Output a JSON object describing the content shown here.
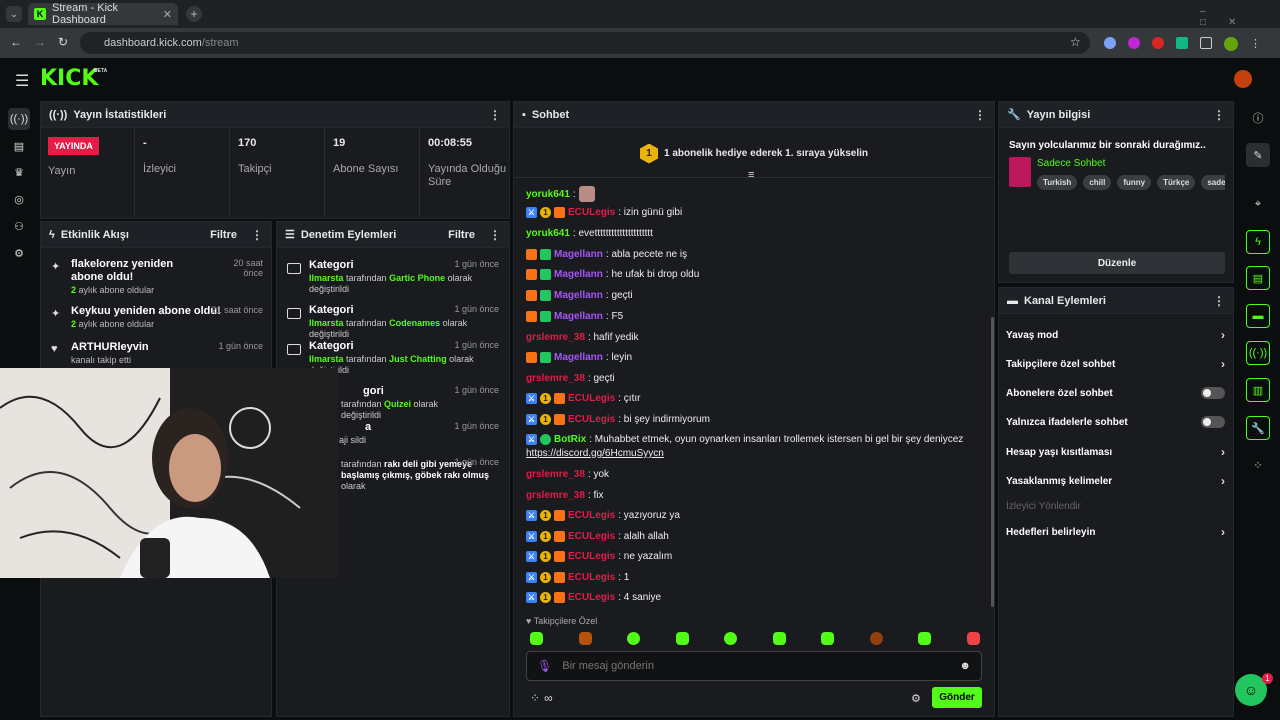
{
  "browser": {
    "tab_title": "Stream - Kick Dashboard",
    "favicon_letter": "K",
    "url_host": "dashboard.kick.com",
    "url_path": "/stream"
  },
  "app": {
    "logo": "KICK",
    "beta": "BETA"
  },
  "stats": {
    "title": "Yayın İstatistikleri",
    "live_badge": "YAYINDA",
    "status_label": "Yayın",
    "items": [
      {
        "value": "-",
        "label": "İzleyici"
      },
      {
        "value": "170",
        "label": "Takipçi"
      },
      {
        "value": "19",
        "label": "Abone Sayısı"
      },
      {
        "value": "00:08:55",
        "label": "Yayında Olduğu Süre"
      }
    ]
  },
  "activity": {
    "title": "Etkinlik Akışı",
    "filter": "Filtre",
    "items": [
      {
        "title": "flakelorenz yeniden abone oldu!",
        "sub_count": "2",
        "sub_text": " aylık abone oldular",
        "time": "20 saat önce"
      },
      {
        "title": "Keykuu yeniden abone oldu!",
        "sub_count": "2",
        "sub_text": " aylık abone oldular",
        "time": "21 saat önce"
      },
      {
        "title": "ARTHURleyvin",
        "sub_count": "",
        "sub_text": "kanalı takip etti",
        "time": "1 gün önce"
      }
    ]
  },
  "moderation": {
    "title": "Denetim Eylemleri",
    "filter": "Filtre",
    "items": [
      {
        "title": "Kategori",
        "user": "Ilmarsta",
        "mid": " tarafından ",
        "value": "Gartic Phone",
        "end": " olarak değiştirildi",
        "time": "1 gün önce"
      },
      {
        "title": "Kategori",
        "user": "Ilmarsta",
        "mid": " tarafından ",
        "value": "Codenames",
        "end": " olarak değiştirildi",
        "time": "1 gün önce"
      },
      {
        "title": "Kategori",
        "user": "Ilmarsta",
        "mid": " tarafından ",
        "value": "Just Chatting",
        "end": " olarak değiştirildi",
        "time": "1 gün önce"
      },
      {
        "title": "gori",
        "user": "",
        "mid": "tarafından ",
        "value": "Quizei",
        "end": " olarak değiştirildi",
        "time": "1 gün önce"
      },
      {
        "title": "a",
        "user": "",
        "mid": "aji sildi",
        "value": "",
        "end": "",
        "time": "1 gün önce"
      },
      {
        "title": "",
        "user": "",
        "mid": "tarafından ",
        "value": "rakı deli gibi yemeye başlamış çıkmış, göbek rakı olmuş",
        "end": " olarak",
        "time": "1 gün önce"
      }
    ]
  },
  "chat": {
    "title": "Sohbet",
    "pinned": "1 abonelik hediye ederek 1. sıraya yükselin",
    "pinned_rank": "1",
    "messages": [
      {
        "badges": [],
        "user": "yoruk641",
        "color": "#53fc18",
        "text": ":",
        "emote": true
      },
      {
        "badges": [
          "blue",
          "gold",
          "org"
        ],
        "user": "ECULegis",
        "color": "#e11d48",
        "text": ": izin günü gibi"
      },
      {
        "badges": [],
        "user": "yoruk641",
        "color": "#53fc18",
        "text": ": evettttttttttttttttttttt"
      },
      {
        "badges": [
          "org",
          "grn"
        ],
        "user": "Magellann",
        "color": "#a855f7",
        "text": ": abla pecete ne iş"
      },
      {
        "badges": [
          "org",
          "grn"
        ],
        "user": "Magellann",
        "color": "#a855f7",
        "text": ": he ufak bi drop oldu"
      },
      {
        "badges": [
          "org",
          "grn"
        ],
        "user": "Magellann",
        "color": "#a855f7",
        "text": ": geçti"
      },
      {
        "badges": [
          "org",
          "grn"
        ],
        "user": "Magellann",
        "color": "#a855f7",
        "text": ": F5"
      },
      {
        "badges": [],
        "user": "grslemre_38",
        "color": "#e11d48",
        "text": ": hafif yedik"
      },
      {
        "badges": [
          "org",
          "grn"
        ],
        "user": "Magellann",
        "color": "#a855f7",
        "text": ": leyin"
      },
      {
        "badges": [],
        "user": "grslemre_38",
        "color": "#e11d48",
        "text": ": geçti"
      },
      {
        "badges": [
          "blue",
          "gold",
          "org"
        ],
        "user": "ECULegis",
        "color": "#e11d48",
        "text": ": çıtır"
      },
      {
        "badges": [
          "blue",
          "gold",
          "org"
        ],
        "user": "ECULegis",
        "color": "#e11d48",
        "text": ": bi şey indirmiyorum"
      },
      {
        "badges": [
          "blue",
          "bot"
        ],
        "user": "BotRix",
        "color": "#53fc18",
        "text": ": Muhabbet etmek, oyun oynarken insanları trollemek istersen bi gel bir şey deniycez"
      },
      {
        "badges": [],
        "user": "grslemre_38",
        "color": "#e11d48",
        "text": ": yok"
      },
      {
        "badges": [],
        "user": "grslemre_38",
        "color": "#e11d48",
        "text": ": fix"
      },
      {
        "badges": [
          "blue",
          "gold",
          "org"
        ],
        "user": "ECULegis",
        "color": "#e11d48",
        "text": ": yazıyoruz ya"
      },
      {
        "badges": [
          "blue",
          "gold",
          "org"
        ],
        "user": "ECULegis",
        "color": "#e11d48",
        "text": ": alalh allah"
      },
      {
        "badges": [
          "blue",
          "gold",
          "org"
        ],
        "user": "ECULegis",
        "color": "#e11d48",
        "text": ": ne yazalım"
      },
      {
        "badges": [
          "blue",
          "gold",
          "org"
        ],
        "user": "ECULegis",
        "color": "#e11d48",
        "text": ": 1"
      },
      {
        "badges": [
          "blue",
          "gold",
          "org"
        ],
        "user": "ECULegis",
        "color": "#e11d48",
        "text": ": 4 saniye"
      }
    ],
    "botrix_link": "https://discord.gg/6HcmuSyycn",
    "followers_only": "Takipçilere Özel",
    "placeholder": "Bir mesaj gönderin",
    "infinity": "∞",
    "send": "Gönder"
  },
  "stream_info": {
    "title": "Yayın bilgisi",
    "stream_title": "Sayın yolcularımız bir sonraki durağımız..",
    "category": "Sadece Sohbet",
    "tags": [
      "Turkish",
      "chill",
      "funny",
      "Türkçe",
      "sadece"
    ],
    "edit": "Düzenle"
  },
  "channel_actions": {
    "title": "Kanal Eylemleri",
    "items": [
      {
        "label": "Yavaş mod",
        "kind": "chevron"
      },
      {
        "label": "Takipçilere özel sohbet",
        "kind": "chevron"
      },
      {
        "label": "Abonelere özel sohbet",
        "kind": "toggle"
      },
      {
        "label": "Yalnızca ifadelerle sohbet",
        "kind": "toggle"
      },
      {
        "label": "Hesap yaşı kısıtlaması",
        "kind": "chevron"
      },
      {
        "label": "Yasaklanmış kelimeler",
        "kind": "chevron"
      },
      {
        "label": "İzleyici Yönlendir",
        "kind": "disabled"
      },
      {
        "label": "Hedefleri belirleyin",
        "kind": "chevron"
      }
    ]
  },
  "help_badge": "1",
  "colors": {
    "accent": "#53fc18",
    "live": "#e11d48"
  }
}
